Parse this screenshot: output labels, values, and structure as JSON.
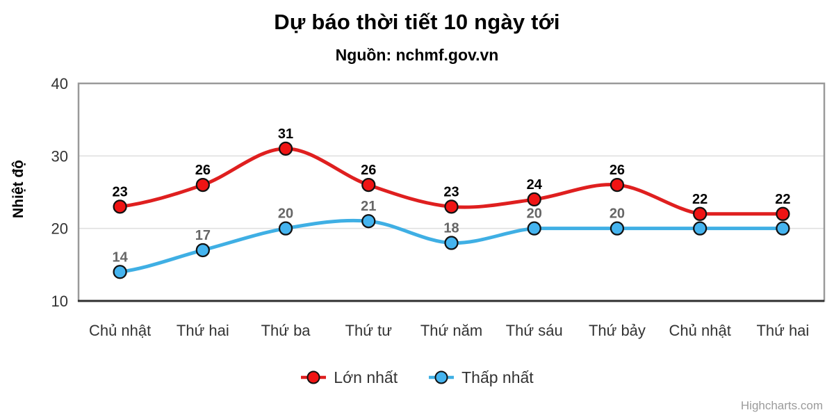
{
  "chart_data": {
    "type": "line",
    "title": "Dự báo thời tiết 10 ngày tới",
    "subtitle": "Nguồn: nchmf.gov.vn",
    "xlabel": "",
    "ylabel": "Nhiệt độ",
    "ylim": [
      10,
      40
    ],
    "yticks": [
      10,
      20,
      30,
      40
    ],
    "grid": true,
    "legend_position": "bottom",
    "credit": "Highcharts.com",
    "categories": [
      "Chủ nhật",
      "Thứ hai",
      "Thứ ba",
      "Thứ tư",
      "Thứ năm",
      "Thứ sáu",
      "Thứ bảy",
      "Chủ nhật",
      "Thứ hai"
    ],
    "series": [
      {
        "name": "Lớn nhất",
        "values": [
          23,
          26,
          31,
          26,
          23,
          24,
          26,
          22,
          22
        ],
        "color": "#df1f1f",
        "marker_color": "#f01414",
        "marker_border_color": "#111111",
        "data_label_color": "#000000",
        "data_labels_shown": [
          true,
          true,
          true,
          true,
          true,
          true,
          true,
          true,
          true
        ]
      },
      {
        "name": "Thấp nhất",
        "values": [
          14,
          17,
          20,
          21,
          18,
          20,
          20,
          20,
          20
        ],
        "color": "#3fafe4",
        "marker_color": "#45b4ef",
        "marker_border_color": "#111111",
        "data_label_color": "#666666",
        "data_labels_shown": [
          true,
          true,
          true,
          true,
          true,
          true,
          true,
          false,
          false
        ]
      }
    ]
  }
}
